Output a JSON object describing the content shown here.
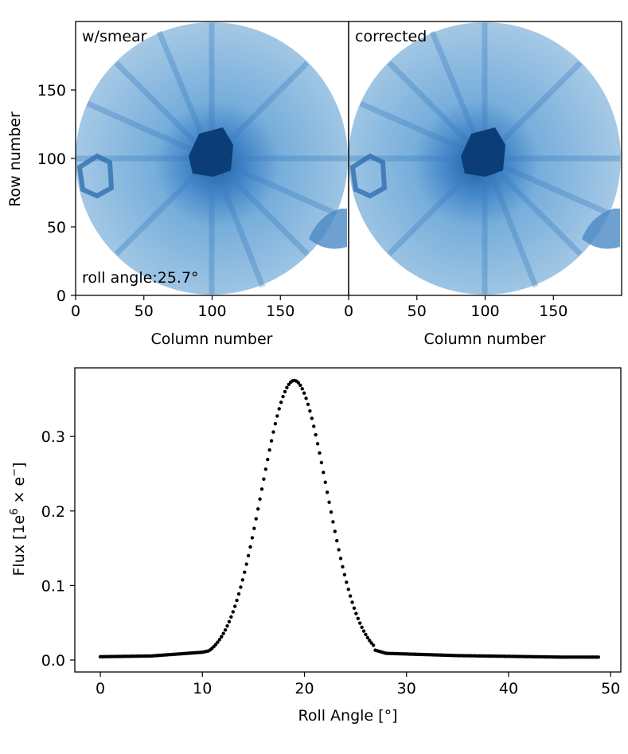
{
  "chart_data": [
    {
      "type": "heatmap",
      "title": "w/smear",
      "annotation": "roll angle:25.7°",
      "xlabel": "Column number",
      "ylabel": "Row number",
      "xlim": [
        0,
        200
      ],
      "ylim": [
        0,
        200
      ],
      "xticks": [
        "0",
        "50",
        "100",
        "150"
      ],
      "yticks": [
        "0",
        "50",
        "100",
        "150"
      ],
      "image": {
        "description_of_content": "circular field of view, radius ~100 px centered at (100,100); saturated star core near center; diffraction spikes; ghost at left (~20,87) and right edge (~185,50)",
        "colormap": "Blues"
      }
    },
    {
      "type": "heatmap",
      "title": "corrected",
      "xlabel": "Column number",
      "xlim": [
        0,
        200
      ],
      "ylim": [
        0,
        200
      ],
      "xticks": [
        "0",
        "50",
        "100",
        "150"
      ],
      "image": {
        "colormap": "Blues"
      }
    },
    {
      "type": "scatter",
      "xlabel": "Roll Angle [°]",
      "ylabel_parts": {
        "a": "Flux [1e",
        "sup": "6",
        "b": " × e",
        "sup2": "−",
        "c": "]"
      },
      "xlim": [
        -2.5,
        51
      ],
      "ylim": [
        -0.016,
        0.392
      ],
      "xticks": [
        0,
        10,
        20,
        30,
        40,
        50
      ],
      "yticks": [
        0.0,
        0.1,
        0.2,
        0.3
      ],
      "xtick_labels": [
        "0",
        "10",
        "20",
        "30",
        "40",
        "50"
      ],
      "ytick_labels": [
        "0.0",
        "0.1",
        "0.2",
        "0.3"
      ],
      "curve": {
        "x_start": 0.0,
        "x_end": 48.8,
        "n_points": 260,
        "baseline_points": [
          [
            0,
            0.0045
          ],
          [
            5,
            0.0055
          ],
          [
            10,
            0.0105
          ],
          [
            11,
            0.0135
          ],
          [
            26.5,
            0.015
          ],
          [
            28,
            0.009
          ],
          [
            35,
            0.006
          ],
          [
            45,
            0.004
          ],
          [
            48.8,
            0.004
          ]
        ],
        "peak": {
          "x": 19.0,
          "y": 0.375,
          "sigma": 3.2
        }
      }
    }
  ]
}
